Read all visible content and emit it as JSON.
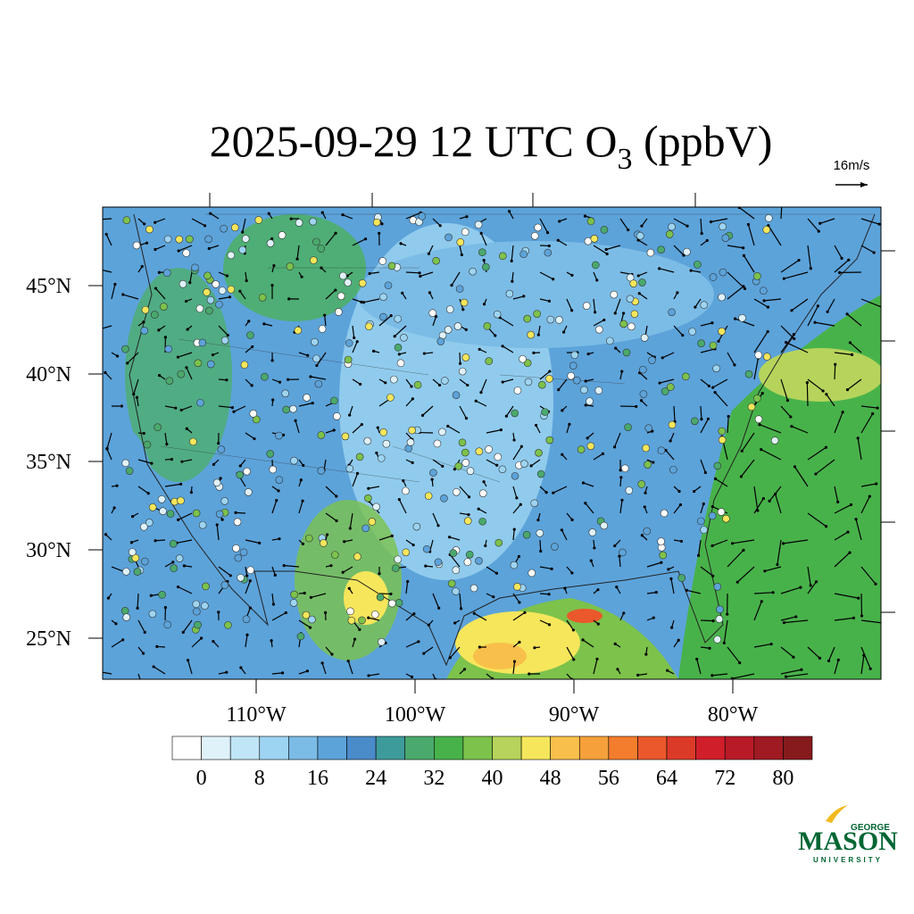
{
  "map": {
    "title": {
      "main": "2025-09-29 12 UTC O",
      "subscript": "3",
      "suffix": " (ppbV)"
    },
    "vector_reference": "16m/s",
    "lat_labels": [
      "45°N",
      "40°N",
      "35°N",
      "30°N",
      "25°N"
    ],
    "lon_labels": [
      "110°W",
      "100°W",
      "90°W",
      "80°W"
    ],
    "colorbar": {
      "ticks": [
        0,
        8,
        16,
        24,
        32,
        40,
        48,
        56,
        64,
        72,
        80
      ],
      "colors": [
        "#ffffff",
        "#dff2fa",
        "#bfe5f6",
        "#9dd4f1",
        "#7bbce6",
        "#5ca3da",
        "#4a8bc9",
        "#3e9b9c",
        "#4aa96c",
        "#48b24a",
        "#7cc24b",
        "#b6d45b",
        "#f6e65b",
        "#f8c04b",
        "#f6a03b",
        "#f37d2d",
        "#ea582c",
        "#dc3a28",
        "#d01f2b",
        "#b81b27",
        "#9f1a22",
        "#861a1d"
      ]
    },
    "logo": {
      "top": "GEORGE",
      "main": "MASON",
      "bottom": "UNIVERSITY"
    }
  }
}
